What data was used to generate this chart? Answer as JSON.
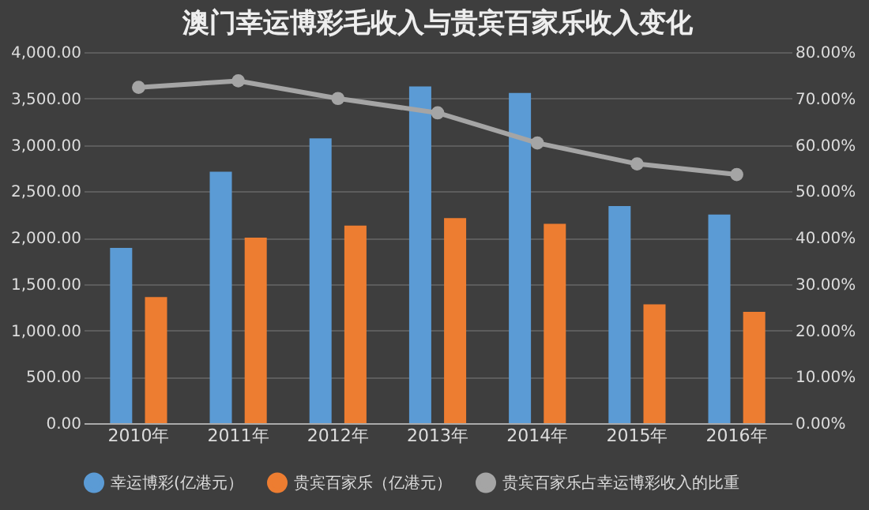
{
  "chart_data": {
    "type": "bar",
    "title": "澳门幸运博彩毛收入与贵宾百家乐收入变化",
    "categories": [
      "2010年",
      "2011年",
      "2012年",
      "2013年",
      "2014年",
      "2015年",
      "2016年"
    ],
    "series": [
      {
        "name": "幸运博彩(亿港元）",
        "color": "#5b9bd5",
        "values": [
          1890,
          2710,
          3070,
          3630,
          3560,
          2340,
          2250
        ]
      },
      {
        "name": "贵宾百家乐（亿港元）",
        "color": "#ed7d31",
        "values": [
          1360,
          2000,
          2130,
          2210,
          2150,
          1280,
          1200
        ]
      },
      {
        "name": "贵宾百家乐占幸运博彩收入的比重",
        "type": "line",
        "axis": "y2",
        "color": "#a5a5a5",
        "values": [
          72.4,
          73.8,
          70.0,
          66.9,
          60.4,
          55.9,
          53.6
        ]
      }
    ],
    "ylim": [
      0,
      4000
    ],
    "yticks": [
      {
        "value": 0,
        "label": "0.00"
      },
      {
        "value": 500,
        "label": "500.00"
      },
      {
        "value": 1000,
        "label": "1,000.00"
      },
      {
        "value": 1500,
        "label": "1,500.00"
      },
      {
        "value": 2000,
        "label": "2,000.00"
      },
      {
        "value": 2500,
        "label": "2,500.00"
      },
      {
        "value": 3000,
        "label": "3,000.00"
      },
      {
        "value": 3500,
        "label": "3,500.00"
      },
      {
        "value": 4000,
        "label": "4,000.00"
      }
    ],
    "y2lim": [
      0,
      80
    ],
    "y2ticks": [
      {
        "value": 0,
        "label": "0.00%"
      },
      {
        "value": 10,
        "label": "10.00%"
      },
      {
        "value": 20,
        "label": "20.00%"
      },
      {
        "value": 30,
        "label": "30.00%"
      },
      {
        "value": 40,
        "label": "40.00%"
      },
      {
        "value": 50,
        "label": "50.00%"
      },
      {
        "value": 60,
        "label": "60.00%"
      },
      {
        "value": 70,
        "label": "70.00%"
      },
      {
        "value": 80,
        "label": "80.00%"
      }
    ],
    "grid": "y",
    "legend": "bottom",
    "marker": "circle",
    "line_style": "solid"
  }
}
